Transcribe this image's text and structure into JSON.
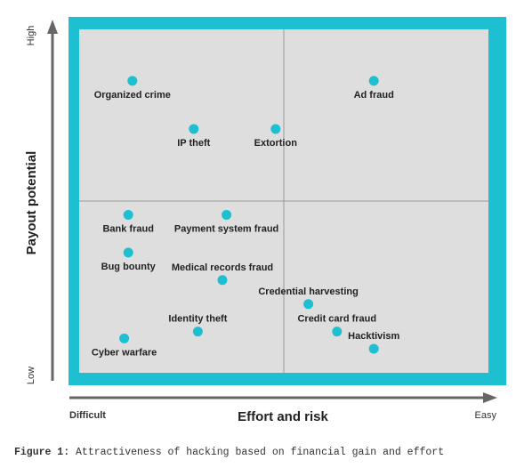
{
  "chart_data": {
    "type": "scatter",
    "title": "",
    "xlabel": "Effort and risk",
    "ylabel": "Payout potential",
    "x_tick_low": "Difficult",
    "x_tick_high": "Easy",
    "y_tick_low": "Low",
    "y_tick_high": "High",
    "xlim": [
      0,
      1
    ],
    "ylim": [
      0,
      1
    ],
    "quadrant_divider": {
      "x": 0.5,
      "y": 0.5
    },
    "grid": false,
    "colors": {
      "frame": "#1ebfd0",
      "plot_bg": "#dedede",
      "point": "#1ebfd0",
      "axis": "#666666"
    },
    "points": [
      {
        "label": "Organized crime",
        "x": 0.13,
        "y": 0.85,
        "label_pos": "below"
      },
      {
        "label": "Ad fraud",
        "x": 0.72,
        "y": 0.85,
        "label_pos": "below"
      },
      {
        "label": "IP theft",
        "x": 0.28,
        "y": 0.71,
        "label_pos": "below"
      },
      {
        "label": "Extortion",
        "x": 0.48,
        "y": 0.71,
        "label_pos": "below"
      },
      {
        "label": "Bank fraud",
        "x": 0.12,
        "y": 0.46,
        "label_pos": "below"
      },
      {
        "label": "Payment system fraud",
        "x": 0.36,
        "y": 0.46,
        "label_pos": "below"
      },
      {
        "label": "Bug bounty",
        "x": 0.12,
        "y": 0.35,
        "label_pos": "below"
      },
      {
        "label": "Medical records fraud",
        "x": 0.35,
        "y": 0.27,
        "label_pos": "above"
      },
      {
        "label": "Credential harvesting",
        "x": 0.56,
        "y": 0.2,
        "label_pos": "above"
      },
      {
        "label": "Identity theft",
        "x": 0.29,
        "y": 0.12,
        "label_pos": "above"
      },
      {
        "label": "Credit card fraud",
        "x": 0.63,
        "y": 0.12,
        "label_pos": "above"
      },
      {
        "label": "Cyber warfare",
        "x": 0.11,
        "y": 0.1,
        "label_pos": "below"
      },
      {
        "label": "Hacktivism",
        "x": 0.72,
        "y": 0.07,
        "label_pos": "above"
      }
    ]
  },
  "caption": {
    "label": "Figure 1:",
    "text": " Attractiveness of hacking based on financial gain and effort"
  }
}
